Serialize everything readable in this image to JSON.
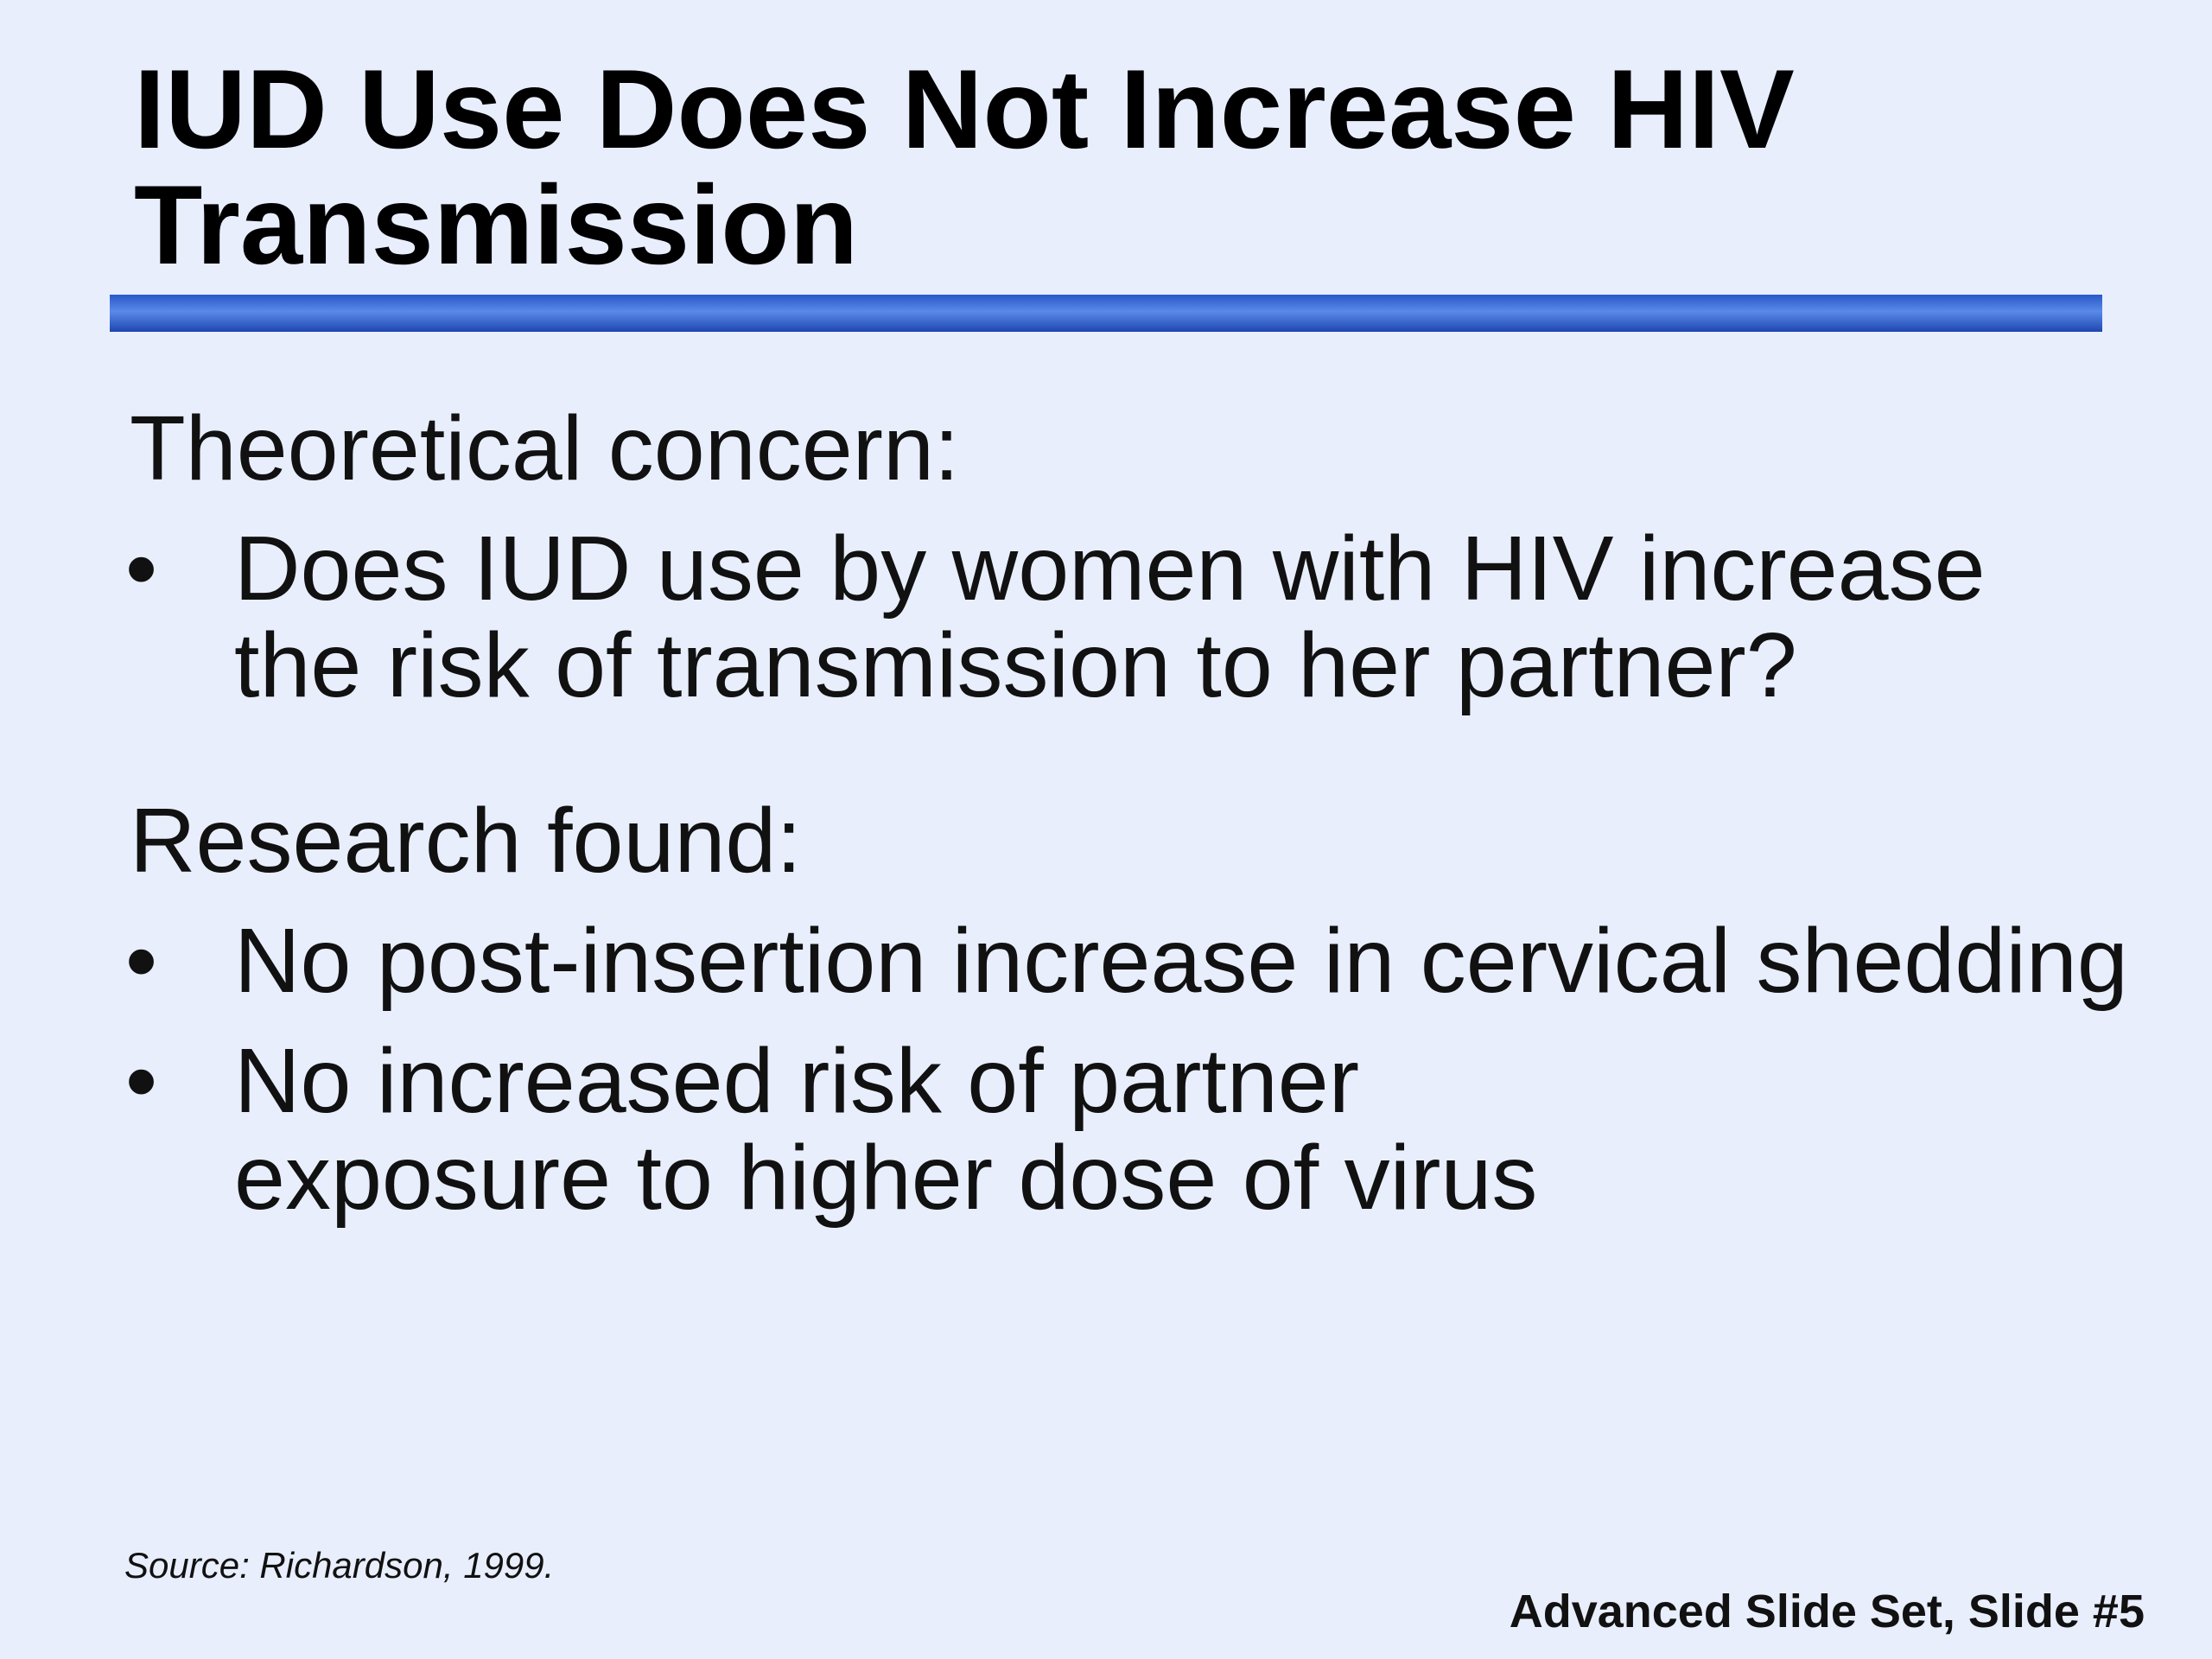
{
  "title": {
    "lines": [
      "IUD Use Does Not Increase HIV",
      "Transmission"
    ]
  },
  "sections": [
    {
      "heading": "Theoretical concern:",
      "bullets": [
        {
          "lines": [
            "Does IUD use by women with HIV increase",
            "the risk of transmission to her partner?"
          ]
        }
      ]
    },
    {
      "heading": "Research found:",
      "bullets": [
        {
          "lines": [
            "No post-insertion increase in cervical shedding"
          ]
        },
        {
          "lines": [
            "No increased risk of partner",
            "exposure to higher dose of virus"
          ]
        }
      ]
    }
  ],
  "source": "Source: Richardson, 1999.",
  "footer": "Advanced Slide Set, Slide #5"
}
